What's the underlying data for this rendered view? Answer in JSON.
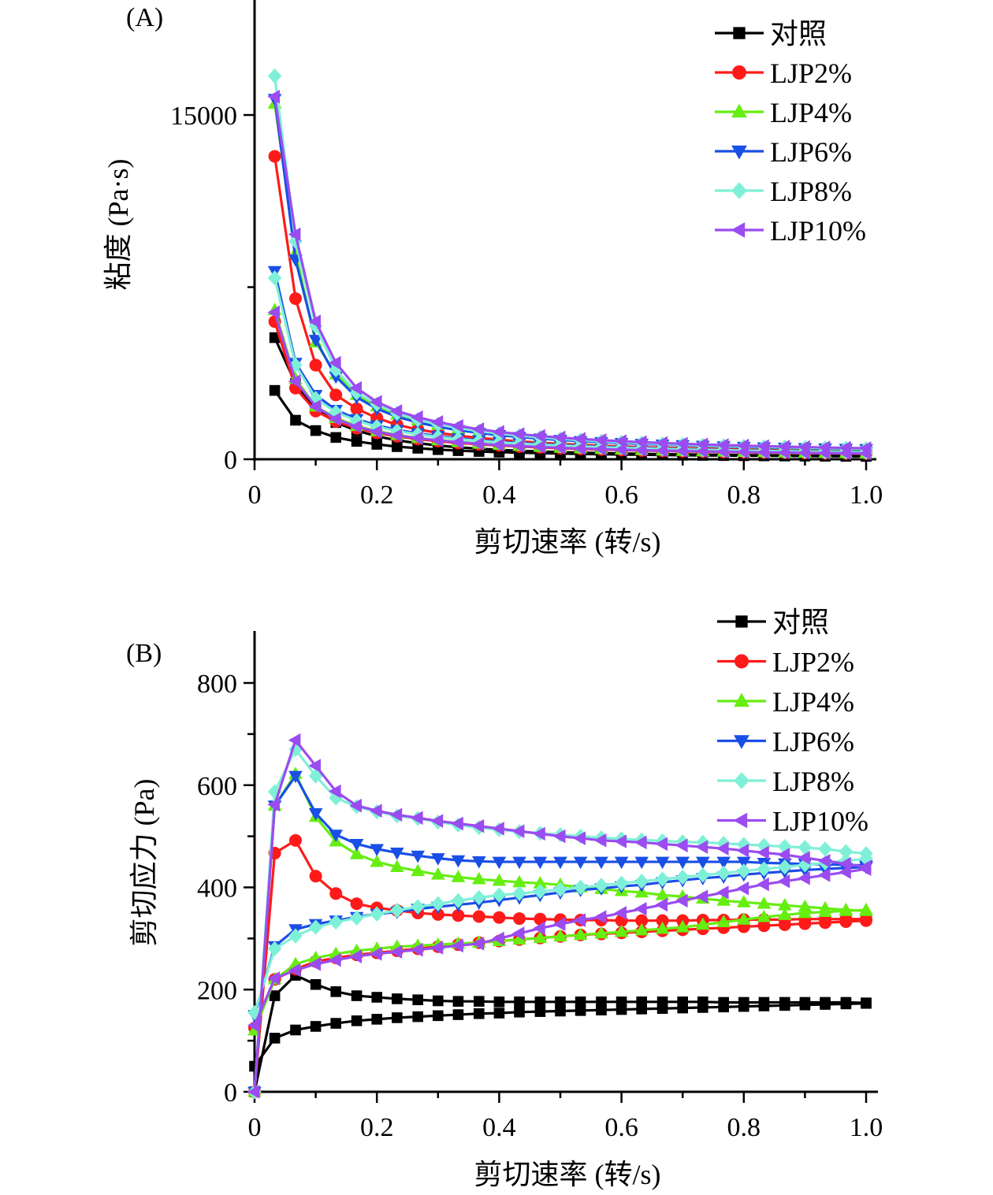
{
  "legend": [
    {
      "name": "对照",
      "color": "#000000",
      "marker": "square"
    },
    {
      "name": "LJP2%",
      "color": "#ff1a1a",
      "marker": "circle"
    },
    {
      "name": "LJP4%",
      "color": "#66ee11",
      "marker": "triangle-up"
    },
    {
      "name": "LJP6%",
      "color": "#1a4fe6",
      "marker": "triangle-down"
    },
    {
      "name": "LJP8%",
      "color": "#7ff0d8",
      "marker": "diamond"
    },
    {
      "name": "LJP10%",
      "color": "#9b4cf0",
      "marker": "triangle-left"
    }
  ],
  "chart_data": [
    {
      "panel_label": "(A)",
      "type": "line",
      "xlabel": "剪切速率 (转/s)",
      "ylabel": "粘度 (Pa·s)",
      "xlim": [
        0,
        1.0
      ],
      "ylim": [
        0,
        15000
      ],
      "ymax_axis": 20000,
      "xticks": [
        0,
        0.2,
        0.4,
        0.6,
        0.8,
        1.0
      ],
      "xtick_labels": [
        "0",
        "0.2",
        "0.4",
        "0.6",
        "0.8",
        "1.0"
      ],
      "yticks": [
        0,
        15000
      ],
      "ytick_labels": [
        "0",
        "15000"
      ],
      "legend_position": "top-right",
      "x": [
        0.033,
        0.067,
        0.1,
        0.133,
        0.167,
        0.2,
        0.233,
        0.267,
        0.3,
        0.333,
        0.367,
        0.4,
        0.433,
        0.467,
        0.5,
        0.533,
        0.567,
        0.6,
        0.633,
        0.667,
        0.7,
        0.733,
        0.767,
        0.8,
        0.833,
        0.867,
        0.9,
        0.933,
        0.967,
        1.0
      ],
      "series": [
        {
          "name": "对照",
          "branches": [
            [
              5300,
              3300,
              2200,
              1600,
              1250,
              1000,
              820,
              700,
              600,
              520,
              460,
              410,
              370,
              340,
              310,
              290,
              270,
              250,
              235,
              220,
              210,
              200,
              190,
              180,
              172,
              165,
              158,
              152,
              146,
              140
            ],
            [
              3000,
              1700,
              1250,
              950,
              780,
              650,
              550,
              480,
              420,
              375,
              340,
              310,
              285,
              265,
              248,
              232,
              218,
              206,
              195,
              185,
              176,
              168,
              161,
              155,
              149,
              143,
              138,
              133,
              129,
              125
            ]
          ]
        },
        {
          "name": "LJP2%",
          "branches": [
            [
              13200,
              7000,
              4100,
              2800,
              2200,
              1800,
              1500,
              1300,
              1150,
              1030,
              930,
              850,
              780,
              720,
              670,
              630,
              590,
              560,
              530,
              500,
              480,
              460,
              440,
              420,
              405,
              390,
              375,
              362,
              350,
              340
            ],
            [
              6000,
              3100,
              2100,
              1650,
              1350,
              1150,
              1000,
              880,
              790,
              710,
              650,
              600,
              555,
              515,
              480,
              450,
              425,
              400,
              380,
              360,
              345,
              330,
              316,
              304,
              292,
              282,
              272,
              263,
              255,
              248
            ]
          ]
        },
        {
          "name": "LJP4%",
          "branches": [
            [
              15500,
              9000,
              5100,
              3700,
              2800,
              2300,
              1950,
              1700,
              1500,
              1340,
              1210,
              1100,
              1010,
              930,
              865,
              810,
              760,
              715,
              675,
              640,
              610,
              580,
              555,
              530,
              510,
              490,
              472,
              455,
              440,
              425
            ],
            [
              6500,
              3500,
              2300,
              1800,
              1450,
              1230,
              1060,
              930,
              830,
              750,
              685,
              630,
              583,
              543,
              508,
              478,
              450,
              426,
              404,
              384,
              366,
              350,
              335,
              321,
              308,
              296,
              285,
              275,
              265,
              256
            ]
          ]
        },
        {
          "name": "LJP6%",
          "branches": [
            [
              15700,
              8700,
              5200,
              3600,
              2700,
              2200,
              1850,
              1600,
              1420,
              1270,
              1150,
              1050,
              970,
              900,
              840,
              790,
              745,
              705,
              670,
              640,
              612,
              586,
              562,
              540,
              520,
              502,
              485,
              469,
              454,
              440
            ],
            [
              8200,
              4200,
              2800,
              2150,
              1750,
              1480,
              1280,
              1130,
              1010,
              910,
              830,
              765,
              710,
              660,
              617,
              580,
              547,
              517,
              490,
              466,
              444,
              424,
              406,
              389,
              374,
              360,
              347,
              335,
              323,
              312
            ]
          ]
        },
        {
          "name": "LJP8%",
          "branches": [
            [
              16700,
              9500,
              5800,
              3900,
              2900,
              2400,
              2000,
              1720,
              1520,
              1360,
              1230,
              1120,
              1030,
              955,
              890,
              835,
              786,
              743,
              705,
              670,
              640,
              612,
              587,
              564,
              543,
              523,
              505,
              488,
              472,
              458
            ],
            [
              7900,
              4100,
              2650,
              2050,
              1680,
              1420,
              1230,
              1085,
              970,
              875,
              798,
              734,
              680,
              633,
              592,
              556,
              524,
              496,
              471,
              448,
              427,
              408,
              391,
              375,
              360,
              347,
              334,
              322,
              311,
              301
            ]
          ]
        },
        {
          "name": "LJP10%",
          "branches": [
            [
              15800,
              9800,
              6000,
              4200,
              3100,
              2500,
              2100,
              1830,
              1620,
              1450,
              1310,
              1190,
              1095,
              1015,
              945,
              885,
              832,
              786,
              745,
              708,
              675,
              645,
              618,
              593,
              570,
              549,
              530,
              512,
              495,
              480
            ],
            [
              6400,
              3400,
              2300,
              1750,
              1420,
              1200,
              1040,
              915,
              820,
              740,
              675,
              620,
              575,
              535,
              500,
              470,
              443,
              419,
              397,
              378,
              360,
              344,
              329,
              316,
              303,
              292,
              281,
              271,
              262,
              253
            ]
          ]
        }
      ]
    },
    {
      "panel_label": "(B)",
      "type": "line",
      "xlabel": "剪切速率 (转/s)",
      "ylabel": "剪切应力 (Pa)",
      "xlim": [
        0,
        1.0
      ],
      "ylim": [
        0,
        900
      ],
      "xticks": [
        0,
        0.2,
        0.4,
        0.6,
        0.8,
        1.0
      ],
      "xtick_labels": [
        "0",
        "0.2",
        "0.4",
        "0.6",
        "0.8",
        "1.0"
      ],
      "yticks": [
        0,
        200,
        400,
        600,
        800
      ],
      "ytick_labels": [
        "0",
        "200",
        "400",
        "600",
        "800"
      ],
      "legend_position": "top-right",
      "x": [
        0,
        0.033,
        0.067,
        0.1,
        0.133,
        0.167,
        0.2,
        0.233,
        0.267,
        0.3,
        0.333,
        0.367,
        0.4,
        0.433,
        0.467,
        0.5,
        0.533,
        0.567,
        0.6,
        0.633,
        0.667,
        0.7,
        0.733,
        0.767,
        0.8,
        0.833,
        0.867,
        0.9,
        0.933,
        0.967,
        1.0
      ],
      "series": [
        {
          "name": "对照",
          "branches": [
            [
              0,
              188,
              228,
              210,
              196,
              188,
              185,
              182,
              180,
              178,
              177,
              177,
              176,
              176,
              176,
              176,
              176,
              176,
              176,
              176,
              176,
              176,
              176,
              175,
              175,
              175,
              175,
              175,
              175,
              175,
              174
            ],
            [
              50,
              105,
              121,
              128,
              134,
              139,
              142,
              145,
              147,
              149,
              151,
              153,
              154,
              156,
              157,
              158,
              159,
              160,
              161,
              162,
              163,
              164,
              165,
              166,
              167,
              168,
              169,
              170,
              171,
              172,
              173
            ]
          ]
        },
        {
          "name": "LJP2%",
          "branches": [
            [
              0,
              467,
              492,
              422,
              388,
              368,
              360,
              355,
              350,
              347,
              345,
              343,
              341,
              339,
              338,
              337,
              336,
              336,
              335,
              335,
              335,
              335,
              336,
              336,
              337,
              337,
              337,
              338,
              338,
              338,
              338
            ],
            [
              125,
              220,
              240,
              255,
              262,
              268,
              272,
              276,
              280,
              284,
              288,
              292,
              295,
              298,
              301,
              304,
              307,
              309,
              311,
              313,
              315,
              317,
              319,
              321,
              323,
              325,
              327,
              329,
              331,
              333,
              335
            ]
          ]
        },
        {
          "name": "LJP4%",
          "branches": [
            [
              0,
              560,
              622,
              538,
              490,
              465,
              450,
              440,
              432,
              425,
              420,
              416,
              413,
              410,
              408,
              405,
              400,
              397,
              393,
              390,
              385,
              382,
              378,
              374,
              371,
              368,
              365,
              362,
              359,
              356,
              354
            ],
            [
              120,
              220,
              250,
              262,
              270,
              276,
              280,
              284,
              286,
              288,
              290,
              292,
              295,
              298,
              301,
              304,
              307,
              310,
              313,
              316,
              319,
              322,
              327,
              332,
              337,
              342,
              346,
              350,
              352,
              354,
              356
            ]
          ]
        },
        {
          "name": "LJP6%",
          "branches": [
            [
              0,
              560,
              618,
              545,
              503,
              485,
              475,
              468,
              462,
              457,
              453,
              451,
              450,
              450,
              450,
              450,
              450,
              450,
              450,
              450,
              450,
              450,
              450,
              450,
              450,
              448,
              447,
              446,
              445,
              444,
              443
            ],
            [
              150,
              285,
              318,
              328,
              335,
              342,
              348,
              352,
              358,
              362,
              366,
              370,
              375,
              380,
              385,
              390,
              395,
              398,
              402,
              405,
              410,
              414,
              418,
              421,
              425,
              428,
              431,
              434,
              436,
              438,
              440
            ]
          ]
        },
        {
          "name": "LJP8%",
          "branches": [
            [
              0,
              587,
              670,
              618,
              575,
              558,
              548,
              540,
              535,
              528,
              522,
              517,
              513,
              509,
              506,
              503,
              500,
              497,
              495,
              493,
              491,
              489,
              488,
              486,
              484,
              482,
              480,
              478,
              475,
              470,
              466
            ],
            [
              155,
              280,
              305,
              322,
              332,
              340,
              348,
              355,
              362,
              368,
              374,
              380,
              385,
              388,
              392,
              396,
              400,
              404,
              408,
              412,
              416,
              420,
              424,
              428,
              432,
              436,
              440,
              444,
              448,
              452,
              456
            ]
          ]
        },
        {
          "name": "LJP10%",
          "branches": [
            [
              0,
              562,
              688,
              638,
              588,
              560,
              550,
              542,
              536,
              530,
              525,
              520,
              515,
              510,
              505,
              500,
              496,
              492,
              490,
              488,
              485,
              482,
              479,
              476,
              472,
              468,
              464,
              458,
              452,
              446,
              440
            ],
            [
              130,
              222,
              238,
              250,
              258,
              265,
              270,
              274,
              278,
              282,
              286,
              290,
              300,
              310,
              320,
              328,
              336,
              342,
              350,
              358,
              366,
              374,
              382,
              390,
              398,
              406,
              412,
              418,
              424,
              430,
              436
            ]
          ]
        }
      ]
    }
  ]
}
